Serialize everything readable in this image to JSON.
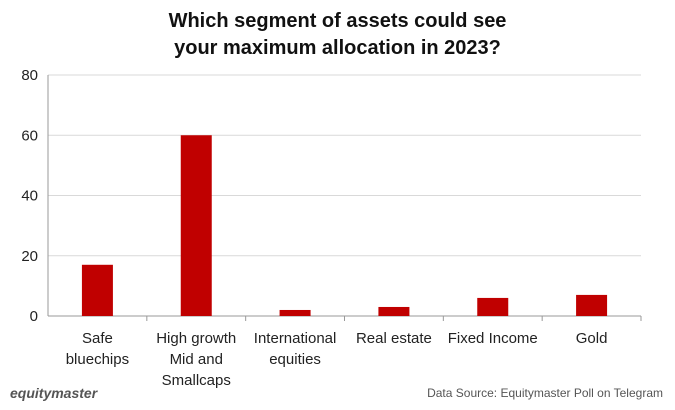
{
  "chart_data": {
    "type": "bar",
    "title_lines": [
      "Which segment of assets could see",
      "your maximum allocation in 2023?"
    ],
    "categories": [
      [
        "Safe",
        "bluechips"
      ],
      [
        "High growth",
        "Mid and",
        "Smallcaps"
      ],
      [
        "International",
        "equities"
      ],
      [
        "Real estate"
      ],
      [
        "Fixed Income"
      ],
      [
        "Gold"
      ]
    ],
    "values": [
      17,
      60,
      2,
      3,
      6,
      7
    ],
    "ylim": [
      0,
      80
    ],
    "yticks": [
      "0",
      "20",
      "40",
      "60",
      "80"
    ],
    "grid": true,
    "bar_color": "#c00000",
    "grid_color": "#d9d9d9"
  },
  "footer": {
    "brand": "equitymaster",
    "source": "Data Source: Equitymaster Poll on Telegram"
  }
}
